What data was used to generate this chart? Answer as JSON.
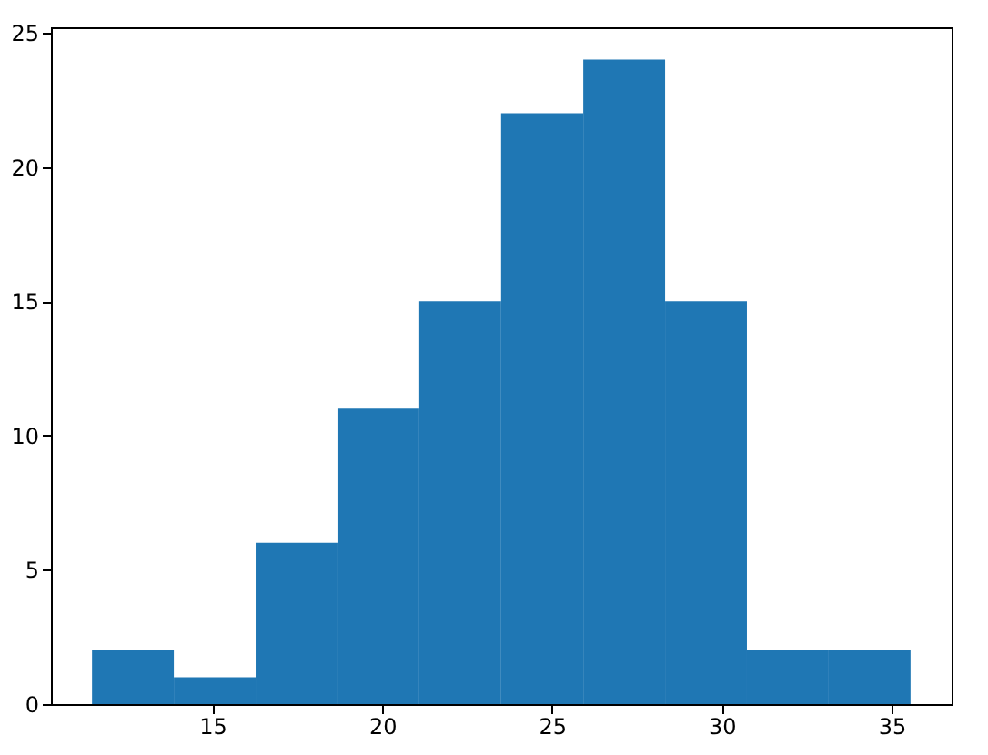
{
  "chart_data": {
    "type": "histogram",
    "bins": [
      11.45,
      13.86,
      16.27,
      18.68,
      21.09,
      23.5,
      25.92,
      28.33,
      30.74,
      33.15,
      35.56
    ],
    "values": [
      2,
      1,
      6,
      11,
      15,
      22,
      24,
      15,
      2,
      2
    ],
    "color": "#1f77b4",
    "xlim": [
      10.24,
      36.77
    ],
    "ylim": [
      0,
      25.2
    ],
    "xticks": [
      15,
      20,
      25,
      30,
      35
    ],
    "yticks": [
      0,
      5,
      10,
      15,
      20,
      25
    ],
    "grid": false
  }
}
